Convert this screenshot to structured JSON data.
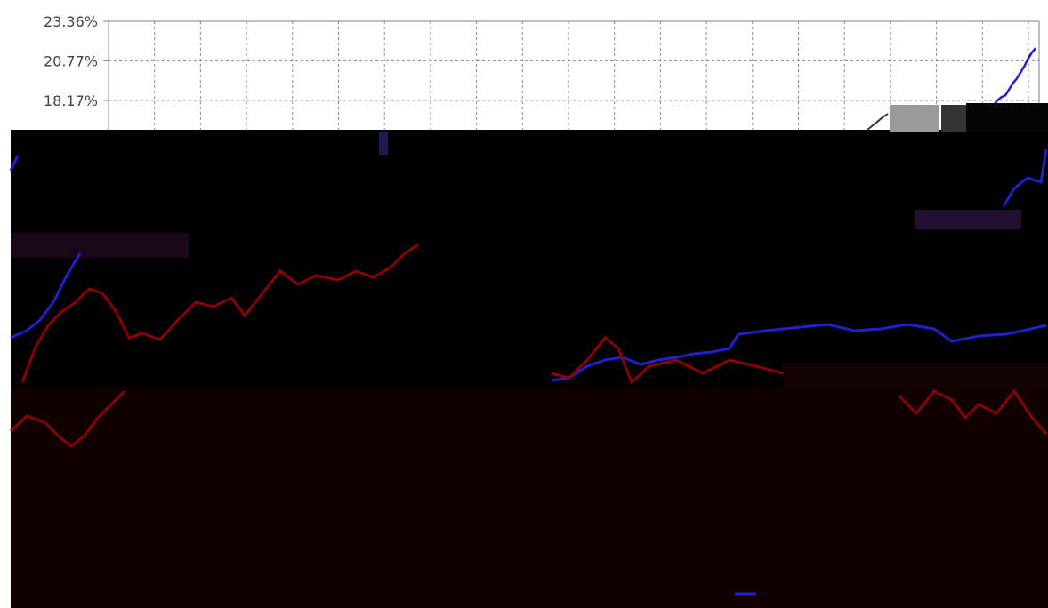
{
  "chart_data": {
    "type": "line",
    "title": "",
    "xlabel": "",
    "ylabel": "",
    "grid": true,
    "y_tick_labels": [
      "23.36%",
      "20.77%",
      "18.17%"
    ],
    "y_ticks": [
      23.36,
      20.77,
      18.17
    ],
    "ylim": [
      9.5,
      23.36
    ],
    "x": [
      0,
      4,
      8,
      12,
      16,
      20,
      24,
      28,
      32,
      36,
      40,
      44,
      48,
      52,
      56,
      60,
      64,
      68,
      72,
      76,
      80,
      84,
      88,
      92,
      96,
      100
    ],
    "series": [
      {
        "color": "#2020cc",
        "values": [
          null,
          null,
          null,
          null,
          null,
          null,
          null,
          null,
          null,
          null,
          null,
          null,
          null,
          null,
          null,
          null,
          null,
          null,
          null,
          null,
          null,
          null,
          null,
          null,
          null,
          null
        ]
      },
      {
        "color": "#2020cc",
        "values": [
          12.0,
          12.6,
          13.1,
          13.4,
          13.9,
          14.6,
          15.0,
          15.2,
          15.9,
          16.4,
          16.6,
          17.1,
          17.4,
          17.6,
          17.9,
          18.2,
          18.4,
          18.5,
          18.9,
          19.3,
          19.6,
          20.0,
          20.4,
          20.9,
          21.3,
          21.6
        ]
      }
    ],
    "colors": {
      "axis": "#808080",
      "grid": "#888888",
      "glitch": "#000000",
      "glitch_dark": "#100000",
      "blue_line": "#2020cc",
      "red_line": "#8b0000"
    }
  }
}
